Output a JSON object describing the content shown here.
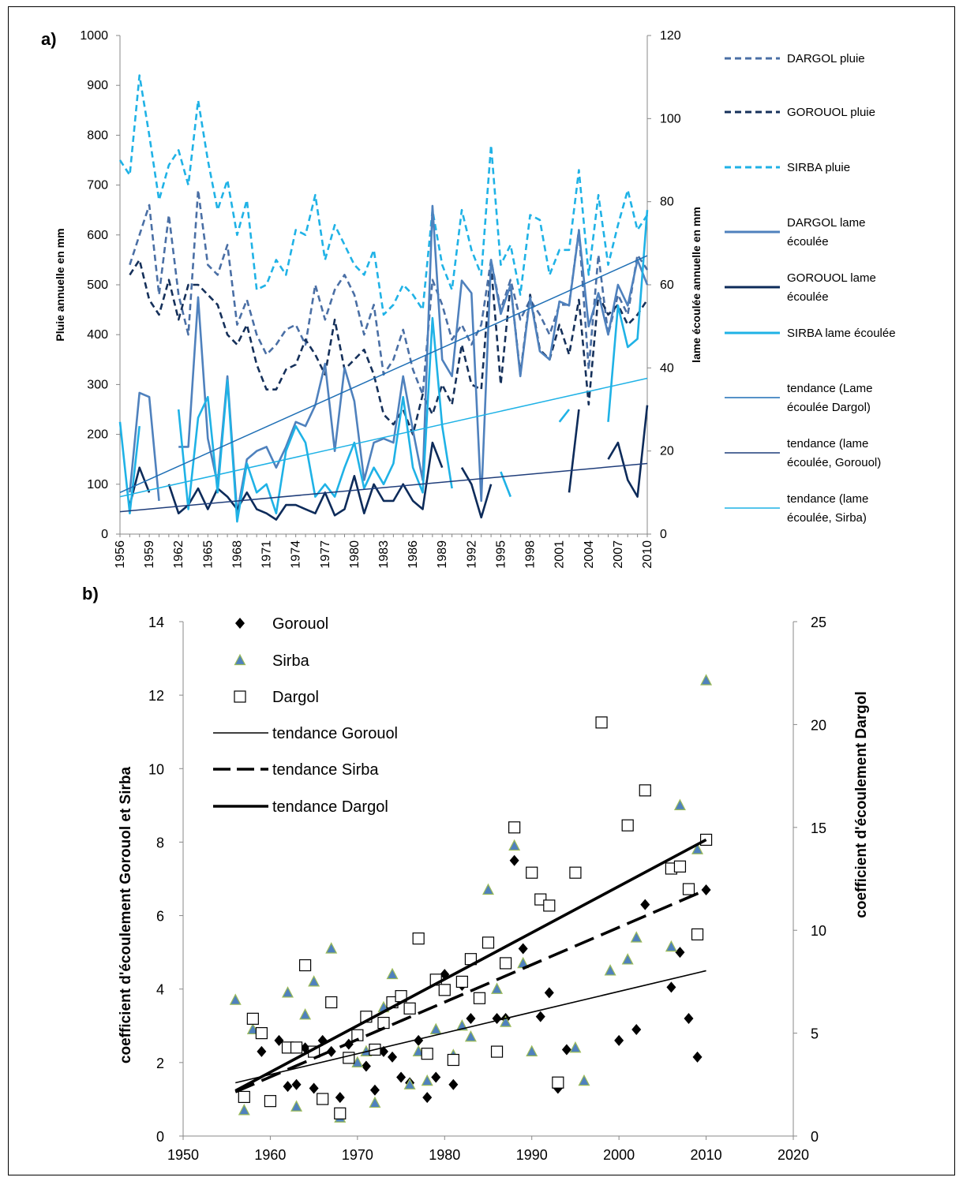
{
  "chart_data": [
    {
      "type": "line",
      "panel_label": "a)",
      "ylabel": "Pluie annuelle en mm",
      "y2label": "lame écoulée annuelle en mm",
      "ylim": [
        0,
        1000
      ],
      "y2lim": [
        0,
        120
      ],
      "yticks": [
        0,
        100,
        200,
        300,
        400,
        500,
        600,
        700,
        800,
        900,
        1000
      ],
      "y2ticks": [
        0,
        20,
        40,
        60,
        80,
        100,
        120
      ],
      "xlim": [
        1956,
        2010
      ],
      "xticks": [
        1956,
        1959,
        1962,
        1965,
        1968,
        1971,
        1974,
        1977,
        1980,
        1983,
        1986,
        1989,
        1992,
        1995,
        1998,
        2001,
        2004,
        2007,
        2010
      ],
      "series": [
        {
          "name": "DARGOL pluie",
          "axis": "left",
          "color": "#4a6fa5",
          "dash": true,
          "x": [
            1957,
            1958,
            1959,
            1960,
            1961,
            1962,
            1963,
            1964,
            1965,
            1966,
            1967,
            1968,
            1969,
            1970,
            1971,
            1972,
            1973,
            1974,
            1975,
            1976,
            1977,
            1978,
            1979,
            1980,
            1981,
            1982,
            1983,
            1984,
            1985,
            1986,
            1987,
            1988,
            1989,
            1990,
            1991,
            1992,
            1993,
            1994,
            1995,
            1996,
            1997,
            1998,
            1999,
            2000,
            2001,
            2002,
            2003,
            2004,
            2005,
            2006,
            2007,
            2008,
            2009,
            2010
          ],
          "y": [
            540,
            600,
            660,
            480,
            640,
            480,
            400,
            690,
            540,
            520,
            580,
            420,
            470,
            400,
            360,
            380,
            410,
            420,
            380,
            500,
            430,
            490,
            520,
            480,
            400,
            460,
            320,
            350,
            410,
            330,
            280,
            510,
            460,
            390,
            420,
            380,
            420,
            550,
            450,
            510,
            430,
            470,
            440,
            400,
            460,
            460,
            610,
            330,
            560,
            400,
            480,
            440,
            560,
            530
          ]
        },
        {
          "name": "GOROUOL pluie",
          "axis": "left",
          "color": "#15305a",
          "dash": true,
          "x": [
            1957,
            1958,
            1959,
            1960,
            1961,
            1962,
            1963,
            1964,
            1965,
            1966,
            1967,
            1968,
            1969,
            1970,
            1971,
            1972,
            1973,
            1974,
            1975,
            1976,
            1977,
            1978,
            1979,
            1980,
            1981,
            1982,
            1983,
            1984,
            1985,
            1986,
            1987,
            1988,
            1989,
            1990,
            1991,
            1992,
            1993,
            1994,
            1995,
            1996,
            1997,
            1998,
            1999,
            2000,
            2001,
            2002,
            2003,
            2004,
            2005,
            2006,
            2007,
            2008,
            2009,
            2010
          ],
          "y": [
            520,
            550,
            470,
            440,
            510,
            430,
            500,
            500,
            480,
            460,
            400,
            380,
            420,
            340,
            290,
            290,
            330,
            340,
            390,
            360,
            320,
            430,
            330,
            350,
            370,
            320,
            240,
            220,
            250,
            200,
            280,
            240,
            300,
            260,
            380,
            300,
            290,
            540,
            300,
            500,
            320,
            480,
            370,
            350,
            420,
            360,
            470,
            260,
            480,
            440,
            460,
            420,
            440,
            470
          ]
        },
        {
          "name": "SIRBA pluie",
          "axis": "left",
          "color": "#1fb2e6",
          "dash": true,
          "x": [
            1956,
            1957,
            1958,
            1959,
            1960,
            1961,
            1962,
            1963,
            1964,
            1965,
            1966,
            1967,
            1968,
            1969,
            1970,
            1971,
            1972,
            1973,
            1974,
            1975,
            1976,
            1977,
            1978,
            1979,
            1980,
            1981,
            1982,
            1983,
            1984,
            1985,
            1986,
            1987,
            1988,
            1989,
            1990,
            1991,
            1992,
            1993,
            1994,
            1995,
            1996,
            1997,
            1998,
            1999,
            2000,
            2001,
            2002,
            2003,
            2004,
            2005,
            2006,
            2007,
            2008,
            2009,
            2010
          ],
          "y": [
            750,
            720,
            920,
            800,
            670,
            740,
            770,
            700,
            870,
            750,
            650,
            710,
            600,
            670,
            490,
            500,
            550,
            520,
            610,
            600,
            680,
            550,
            620,
            580,
            540,
            520,
            570,
            440,
            460,
            500,
            480,
            450,
            650,
            540,
            490,
            650,
            570,
            520,
            780,
            540,
            580,
            480,
            640,
            630,
            520,
            570,
            570,
            730,
            520,
            680,
            540,
            620,
            690,
            610,
            640
          ]
        },
        {
          "name": "DARGOL lame écoulée",
          "axis": "right",
          "color": "#4f81bd",
          "dash": false,
          "x": [
            1957,
            1958,
            1959,
            1960,
            1962,
            1963,
            1964,
            1965,
            1966,
            1967,
            1968,
            1969,
            1970,
            1971,
            1972,
            1973,
            1974,
            1975,
            1976,
            1977,
            1978,
            1979,
            1980,
            1981,
            1982,
            1983,
            1984,
            1985,
            1986,
            1987,
            1988,
            1989,
            1990,
            1991,
            1992,
            1993,
            1994,
            1995,
            1996,
            1997,
            1998,
            1999,
            2000,
            2001,
            2002,
            2003,
            2004,
            2005,
            2006,
            2007,
            2008,
            2009,
            2010
          ],
          "y": [
            10,
            34,
            33,
            8,
            21,
            21,
            57,
            23,
            12,
            38,
            5,
            18,
            20,
            21,
            16,
            21,
            27,
            26,
            31,
            41,
            20,
            40,
            32,
            13,
            22,
            23,
            22,
            38,
            25,
            13,
            79,
            42,
            38,
            61,
            58,
            8,
            66,
            53,
            60,
            38,
            57,
            44,
            42,
            56,
            55,
            73,
            50,
            58,
            48,
            60,
            55,
            66,
            60
          ]
        },
        {
          "name": "GOROUOL lame écoulée",
          "axis": "right",
          "color": "#0d2b5a",
          "dash": false,
          "x": [
            1957,
            1958,
            1959,
            1961,
            1962,
            1963,
            1964,
            1965,
            1966,
            1967,
            1968,
            1969,
            1970,
            1971,
            1972,
            1973,
            1974,
            1975,
            1976,
            1977,
            1978,
            1979,
            1980,
            1981,
            1982,
            1983,
            1984,
            1985,
            1986,
            1987,
            1988,
            1989,
            1991,
            1992,
            1993,
            1994,
            2002,
            2003,
            2006,
            2007,
            2008,
            2009,
            2010
          ],
          "y": [
            7,
            16,
            10,
            12,
            5,
            7,
            11,
            6,
            11,
            9,
            6,
            10,
            6,
            5,
            3.5,
            7,
            7,
            6,
            5,
            10,
            4.5,
            6,
            14,
            5,
            12,
            8,
            8,
            12,
            8,
            6,
            22,
            16,
            16,
            12,
            4,
            12,
            10,
            30,
            18,
            22,
            13,
            9,
            31
          ]
        },
        {
          "name": "SIRBA lame écoulée",
          "axis": "right",
          "color": "#1fb2e6",
          "dash": false,
          "x": [
            1956,
            1957,
            1958,
            1962,
            1963,
            1964,
            1965,
            1966,
            1967,
            1968,
            1969,
            1970,
            1971,
            1972,
            1973,
            1974,
            1975,
            1976,
            1977,
            1978,
            1979,
            1980,
            1981,
            1982,
            1983,
            1984,
            1985,
            1986,
            1987,
            1988,
            1989,
            1990,
            1995,
            1996,
            2001,
            2002,
            2006,
            2007,
            2008,
            2009,
            2010
          ],
          "y": [
            27,
            5,
            26,
            30,
            6,
            28,
            33,
            10,
            37,
            3,
            17,
            10,
            12,
            5,
            20,
            26,
            22,
            9,
            12,
            9,
            16,
            22,
            11,
            16,
            12,
            17,
            33,
            16,
            10,
            52,
            26,
            11,
            15,
            9,
            27,
            30,
            27,
            55,
            45,
            47,
            78
          ]
        },
        {
          "name": "tendance (Lame écoulée Dargol)",
          "axis": "right",
          "color": "#1f6fb5",
          "dash": false,
          "trend": true,
          "x": [
            1956,
            2010
          ],
          "y": [
            10,
            67
          ]
        },
        {
          "name": "tendance (lame écoulée, Gorouol)",
          "axis": "right",
          "color": "#1f3d7a",
          "dash": false,
          "trend": true,
          "x": [
            1956,
            2010
          ],
          "y": [
            5.4,
            17
          ]
        },
        {
          "name": "tendance (lame écoulée, Sirba)",
          "axis": "right",
          "color": "#1fb2e6",
          "dash": false,
          "trend": true,
          "x": [
            1956,
            2010
          ],
          "y": [
            9,
            37.5
          ]
        }
      ]
    },
    {
      "type": "scatter",
      "panel_label": "b)",
      "ylabel": "coefficient d'écoulement  Gorouol et Sirba",
      "y2label": "coefficient d'écoulement Dargol",
      "xlim": [
        1950,
        2020
      ],
      "xticks": [
        1950,
        1960,
        1970,
        1980,
        1990,
        2000,
        2010,
        2020
      ],
      "ylim": [
        0,
        14
      ],
      "yticks": [
        0,
        2,
        4,
        6,
        8,
        10,
        12,
        14
      ],
      "y2lim": [
        0,
        25
      ],
      "y2ticks": [
        0,
        5,
        10,
        15,
        20,
        25
      ],
      "series": [
        {
          "name": "Gorouol",
          "axis": "left",
          "marker": "diamond",
          "color": "#000000",
          "x": [
            1959,
            1961,
            1962,
            1963,
            1964,
            1965,
            1966,
            1967,
            1968,
            1969,
            1971,
            1972,
            1973,
            1974,
            1975,
            1976,
            1977,
            1978,
            1979,
            1980,
            1981,
            1982,
            1983,
            1986,
            1987,
            1988,
            1989,
            1991,
            1992,
            1993,
            1994,
            2000,
            2002,
            2003,
            2006,
            2007,
            2008,
            2009,
            2010
          ],
          "y": [
            2.3,
            2.6,
            1.35,
            1.4,
            2.4,
            1.3,
            2.6,
            2.3,
            1.05,
            2.5,
            1.9,
            1.25,
            2.3,
            2.15,
            1.6,
            1.45,
            2.6,
            1.05,
            1.6,
            4.4,
            1.4,
            4.1,
            3.2,
            3.2,
            3.2,
            7.5,
            5.1,
            3.25,
            3.9,
            1.3,
            2.35,
            2.6,
            2.9,
            6.3,
            4.05,
            5.0,
            3.2,
            2.15,
            6.7
          ]
        },
        {
          "name": "Sirba",
          "axis": "left",
          "marker": "triangle",
          "color": "#4f81bd",
          "x": [
            1956,
            1957,
            1958,
            1962,
            1963,
            1964,
            1965,
            1967,
            1968,
            1970,
            1971,
            1972,
            1973,
            1974,
            1975,
            1976,
            1977,
            1978,
            1979,
            1981,
            1982,
            1983,
            1985,
            1986,
            1987,
            1988,
            1989,
            1990,
            1995,
            1996,
            1999,
            2001,
            2002,
            2006,
            2007,
            2009,
            2010
          ],
          "y": [
            3.7,
            0.7,
            2.9,
            3.9,
            0.8,
            3.3,
            4.2,
            5.1,
            0.5,
            2.0,
            2.3,
            0.9,
            3.5,
            4.4,
            3.8,
            1.4,
            2.3,
            1.5,
            2.9,
            2.2,
            3.0,
            2.7,
            6.7,
            4.0,
            3.1,
            7.9,
            4.7,
            2.3,
            2.4,
            1.5,
            4.5,
            4.8,
            5.4,
            5.15,
            9.0,
            7.8,
            12.4
          ]
        },
        {
          "name": "Dargol",
          "axis": "right",
          "marker": "square",
          "color": "#000000",
          "x": [
            1957,
            1958,
            1959,
            1960,
            1962,
            1963,
            1964,
            1965,
            1966,
            1967,
            1968,
            1969,
            1970,
            1971,
            1972,
            1973,
            1974,
            1975,
            1976,
            1977,
            1978,
            1979,
            1980,
            1981,
            1982,
            1983,
            1984,
            1985,
            1986,
            1987,
            1988,
            1990,
            1991,
            1992,
            1993,
            1995,
            1998,
            2001,
            2003,
            2006,
            2007,
            2008,
            2009,
            2010
          ],
          "y": [
            1.9,
            5.7,
            5.0,
            1.7,
            4.3,
            4.3,
            8.3,
            4.1,
            1.8,
            6.5,
            1.1,
            3.8,
            4.9,
            5.8,
            4.2,
            5.5,
            6.5,
            6.8,
            6.2,
            9.6,
            4.0,
            7.6,
            7.1,
            3.7,
            7.5,
            8.6,
            6.7,
            9.4,
            4.1,
            8.4,
            15.0,
            12.8,
            11.5,
            11.2,
            2.6,
            12.8,
            20.1,
            15.1,
            16.8,
            13.0,
            13.1,
            12.0,
            9.8,
            14.4
          ]
        },
        {
          "name": "tendance Gorouol",
          "axis": "left",
          "trend": true,
          "style": "thin",
          "x": [
            1956,
            2010
          ],
          "y": [
            1.45,
            4.5
          ]
        },
        {
          "name": "tendance Sirba",
          "axis": "left",
          "trend": true,
          "style": "dashed",
          "x": [
            1956,
            2010
          ],
          "y": [
            1.2,
            6.7
          ]
        },
        {
          "name": "tendance Dargol",
          "axis": "right",
          "trend": true,
          "style": "thick",
          "x": [
            1956,
            2010
          ],
          "y": [
            2.2,
            14.4
          ]
        }
      ]
    }
  ]
}
